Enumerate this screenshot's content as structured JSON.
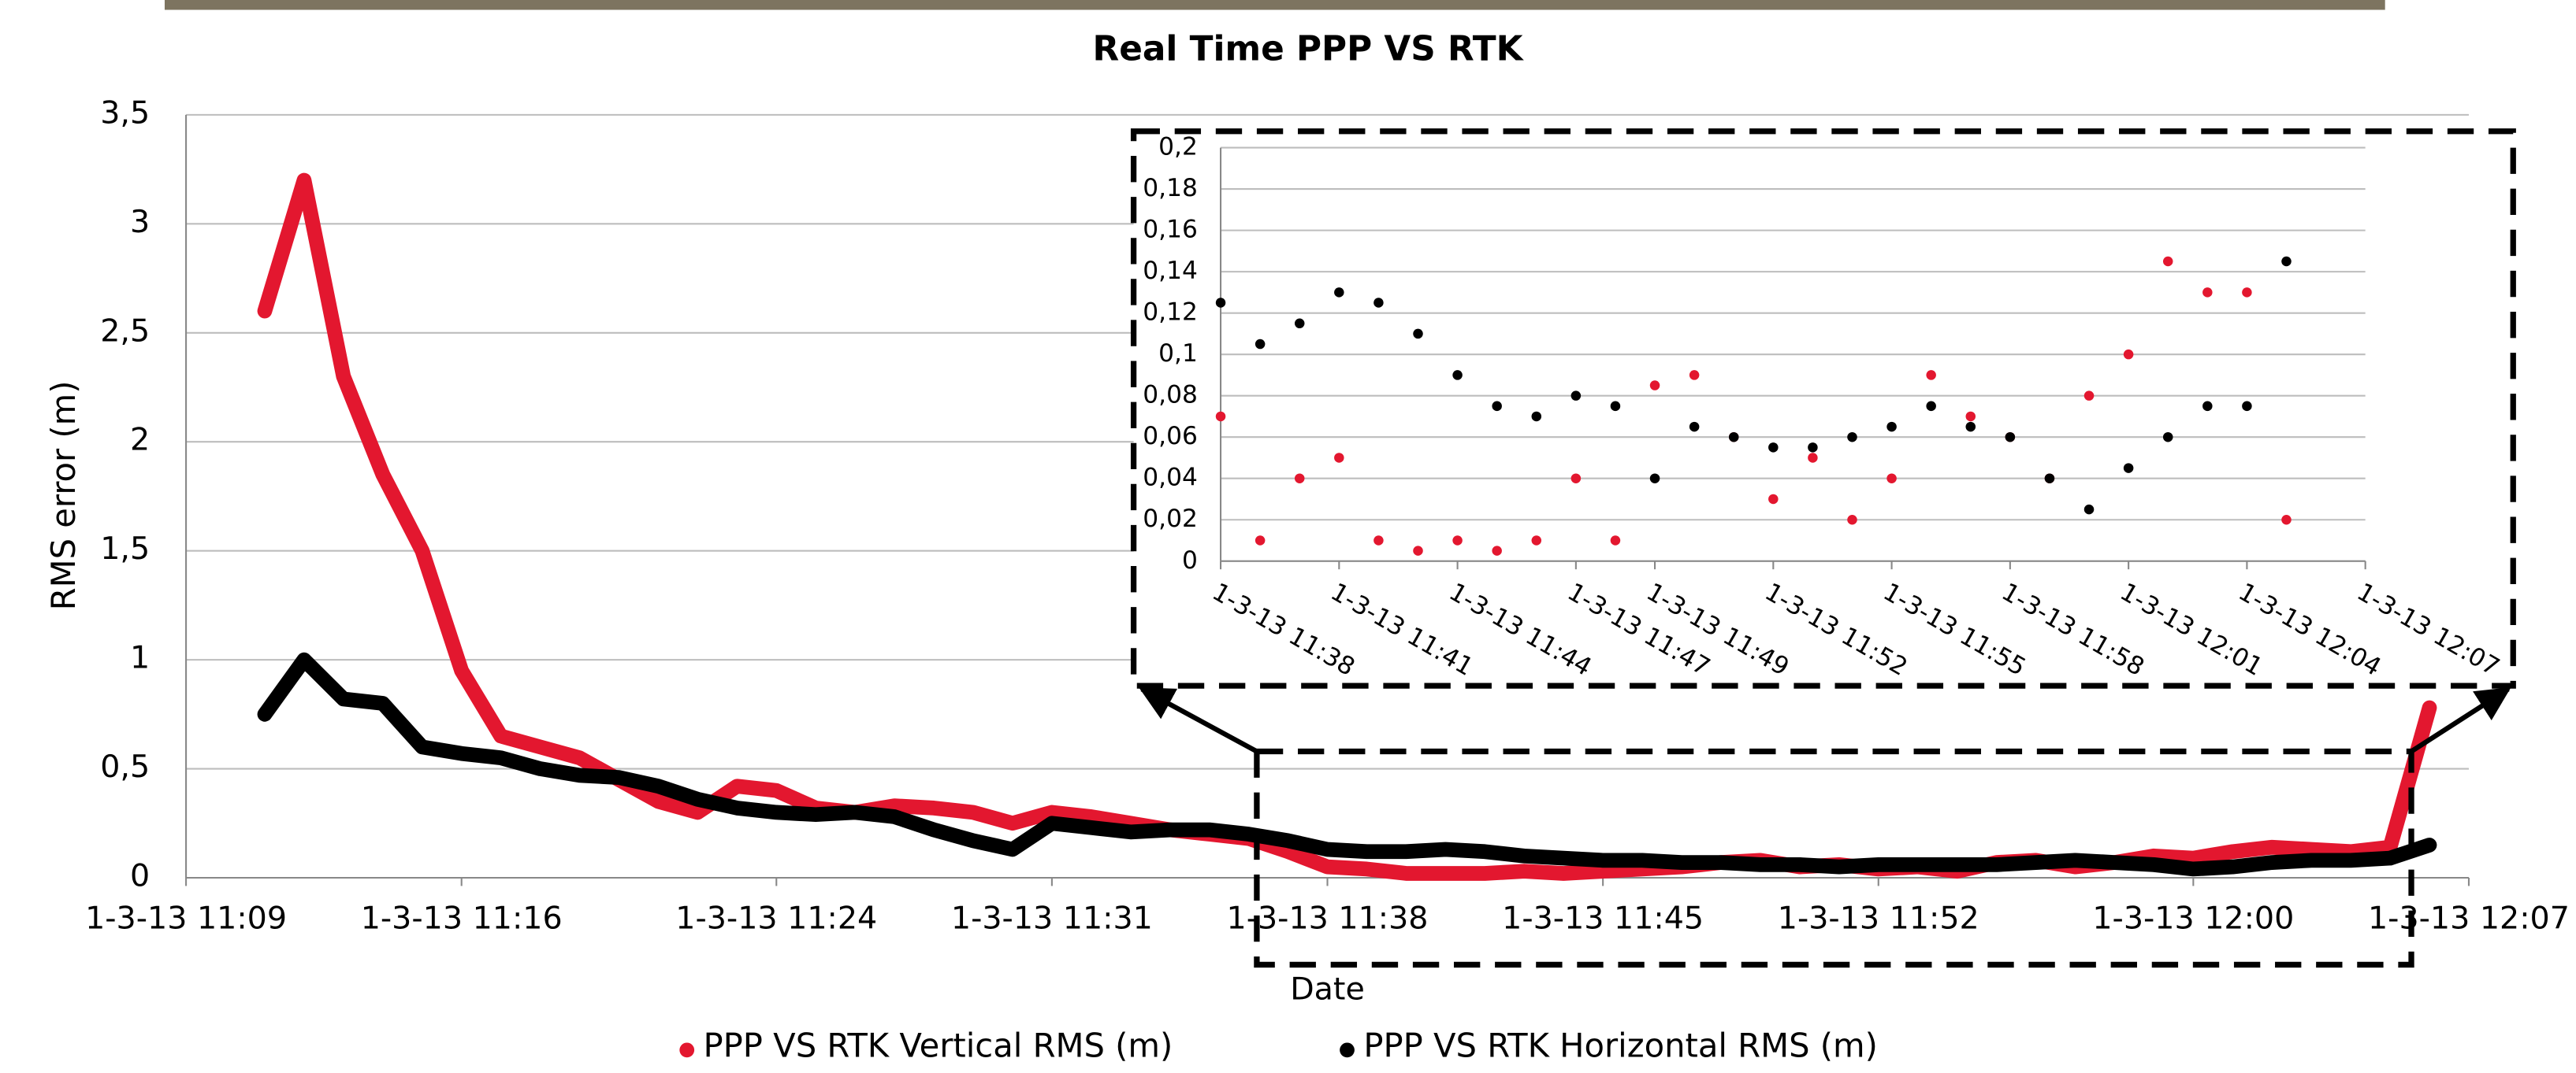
{
  "chart_data": [
    {
      "type": "line",
      "title": "Real Time PPP VS RTK",
      "xlabel": "Date",
      "ylabel": "RMS error (m)",
      "xlim": [
        "1-3-13 11:09",
        "1-3-13 12:07"
      ],
      "xticks": [
        "1-3-13 11:09",
        "1-3-13 11:16",
        "1-3-13 11:24",
        "1-3-13 11:31",
        "1-3-13 11:38",
        "1-3-13 11:45",
        "1-3-13 11:52",
        "1-3-13 12:00",
        "1-3-13 12:07"
      ],
      "ylim": [
        0,
        3.5
      ],
      "yticks": [
        0,
        {
          "value": 0.5,
          "label": "0,5"
        },
        1,
        {
          "value": 1.5,
          "label": "1,5"
        },
        2,
        {
          "value": 2.5,
          "label": "2,5"
        },
        3,
        {
          "value": 3.5,
          "label": "3,5"
        }
      ],
      "grid": true,
      "legend": "bottom",
      "x": [
        "1-3-13 11:11",
        "1-3-13 11:12",
        "1-3-13 11:13",
        "1-3-13 11:14",
        "1-3-13 11:15",
        "1-3-13 11:16",
        "1-3-13 11:17",
        "1-3-13 11:18",
        "1-3-13 11:19",
        "1-3-13 11:20",
        "1-3-13 11:21",
        "1-3-13 11:22",
        "1-3-13 11:23",
        "1-3-13 11:24",
        "1-3-13 11:25",
        "1-3-13 11:26",
        "1-3-13 11:27",
        "1-3-13 11:28",
        "1-3-13 11:29",
        "1-3-13 11:30",
        "1-3-13 11:31",
        "1-3-13 11:32",
        "1-3-13 11:33",
        "1-3-13 11:34",
        "1-3-13 11:35",
        "1-3-13 11:36",
        "1-3-13 11:37",
        "1-3-13 11:38",
        "1-3-13 11:39",
        "1-3-13 11:40",
        "1-3-13 11:41",
        "1-3-13 11:42",
        "1-3-13 11:43",
        "1-3-13 11:44",
        "1-3-13 11:45",
        "1-3-13 11:46",
        "1-3-13 11:47",
        "1-3-13 11:48",
        "1-3-13 11:49",
        "1-3-13 11:50",
        "1-3-13 11:51",
        "1-3-13 11:52",
        "1-3-13 11:53",
        "1-3-13 11:54",
        "1-3-13 11:55",
        "1-3-13 11:56",
        "1-3-13 11:57",
        "1-3-13 11:58",
        "1-3-13 11:59",
        "1-3-13 12:00",
        "1-3-13 12:01",
        "1-3-13 12:02",
        "1-3-13 12:03",
        "1-3-13 12:04",
        "1-3-13 12:05",
        "1-3-13 12:06"
      ],
      "series": [
        {
          "name": "PPP VS RTK Vertical RMS (m)",
          "color": "#e3172f",
          "values": [
            2.6,
            3.2,
            2.3,
            1.85,
            1.5,
            0.95,
            0.65,
            0.6,
            0.55,
            0.45,
            0.35,
            0.3,
            0.42,
            0.4,
            0.32,
            0.3,
            0.33,
            0.32,
            0.3,
            0.25,
            0.3,
            0.28,
            0.25,
            0.22,
            0.2,
            0.18,
            0.12,
            0.05,
            0.04,
            0.02,
            0.02,
            0.02,
            0.03,
            0.02,
            0.03,
            0.04,
            0.05,
            0.07,
            0.08,
            0.05,
            0.06,
            0.04,
            0.05,
            0.03,
            0.07,
            0.08,
            0.05,
            0.07,
            0.1,
            0.09,
            0.12,
            0.14,
            0.13,
            0.12,
            0.14,
            0.78
          ]
        },
        {
          "name": "PPP VS RTK Horizontal RMS (m)",
          "color": "#000000",
          "values": [
            0.75,
            1.0,
            0.82,
            0.8,
            0.6,
            0.57,
            0.55,
            0.5,
            0.47,
            0.46,
            0.42,
            0.36,
            0.32,
            0.3,
            0.29,
            0.3,
            0.28,
            0.22,
            0.17,
            0.13,
            0.25,
            0.23,
            0.21,
            0.22,
            0.22,
            0.2,
            0.17,
            0.13,
            0.12,
            0.12,
            0.13,
            0.12,
            0.1,
            0.09,
            0.08,
            0.08,
            0.07,
            0.07,
            0.06,
            0.06,
            0.05,
            0.06,
            0.06,
            0.06,
            0.06,
            0.07,
            0.08,
            0.07,
            0.06,
            0.04,
            0.05,
            0.07,
            0.08,
            0.08,
            0.09,
            0.15
          ]
        }
      ]
    },
    {
      "type": "scatter",
      "xlim": [
        "1-3-13 11:38",
        "1-3-13 12:07"
      ],
      "xticks": [
        "1-3-13 11:38",
        "1-3-13 11:41",
        "1-3-13 11:44",
        "1-3-13 11:47",
        "1-3-13 11:49",
        "1-3-13 11:52",
        "1-3-13 11:55",
        "1-3-13 11:58",
        "1-3-13 12:01",
        "1-3-13 12:04",
        "1-3-13 12:07"
      ],
      "ylim": [
        0,
        0.2
      ],
      "yticks": [
        0,
        {
          "value": 0.02,
          "label": "0,02"
        },
        {
          "value": 0.04,
          "label": "0,04"
        },
        {
          "value": 0.06,
          "label": "0,06"
        },
        {
          "value": 0.08,
          "label": "0,08"
        },
        {
          "value": 0.1,
          "label": "0,1"
        },
        {
          "value": 0.12,
          "label": "0,12"
        },
        {
          "value": 0.14,
          "label": "0,14"
        },
        {
          "value": 0.16,
          "label": "0,16"
        },
        {
          "value": 0.18,
          "label": "0,18"
        },
        {
          "value": 0.2,
          "label": "0,2"
        }
      ],
      "grid": true,
      "x": [
        "1-3-13 11:38",
        "1-3-13 11:39",
        "1-3-13 11:40",
        "1-3-13 11:41",
        "1-3-13 11:42",
        "1-3-13 11:43",
        "1-3-13 11:44",
        "1-3-13 11:45",
        "1-3-13 11:46",
        "1-3-13 11:47",
        "1-3-13 11:48",
        "1-3-13 11:49",
        "1-3-13 11:50",
        "1-3-13 11:51",
        "1-3-13 11:52",
        "1-3-13 11:53",
        "1-3-13 11:54",
        "1-3-13 11:55",
        "1-3-13 11:56",
        "1-3-13 11:57",
        "1-3-13 11:58",
        "1-3-13 11:59",
        "1-3-13 12:00",
        "1-3-13 12:01",
        "1-3-13 12:02",
        "1-3-13 12:03",
        "1-3-13 12:04",
        "1-3-13 12:05"
      ],
      "series": [
        {
          "color": "#e3172f",
          "values": [
            0.07,
            0.01,
            0.04,
            0.05,
            0.01,
            0.005,
            0.01,
            0.005,
            0.01,
            0.04,
            0.01,
            0.085,
            0.09,
            0.06,
            0.03,
            0.05,
            0.02,
            0.04,
            0.09,
            0.07,
            0.06,
            0.04,
            0.08,
            0.1,
            0.145,
            0.13,
            0.13,
            0.02
          ]
        },
        {
          "color": "#000000",
          "values": [
            0.125,
            0.105,
            0.115,
            0.13,
            0.125,
            0.11,
            0.09,
            0.075,
            0.07,
            0.08,
            0.075,
            0.04,
            0.065,
            0.06,
            0.055,
            0.055,
            0.06,
            0.065,
            0.075,
            0.065,
            0.06,
            0.04,
            0.025,
            0.045,
            0.06,
            0.075,
            0.075,
            0.145
          ]
        }
      ]
    }
  ]
}
